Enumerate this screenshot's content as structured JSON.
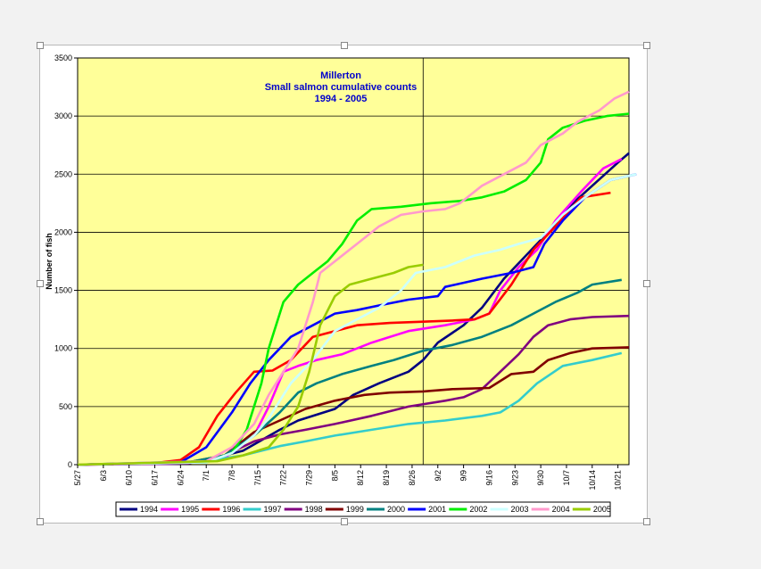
{
  "chart_data": {
    "type": "line",
    "title": [
      "Millerton",
      "Small salmon cumulative counts",
      "1994 - 2005"
    ],
    "xlabel": "",
    "ylabel": "Number of fish",
    "ylim": [
      0,
      3500
    ],
    "yticks": [
      0,
      500,
      1000,
      1500,
      2000,
      2500,
      3000,
      3500
    ],
    "xlim": [
      0,
      150
    ],
    "xtick_labels": [
      "5/27",
      "6/3",
      "6/10",
      "6/17",
      "6/24",
      "7/1",
      "7/8",
      "7/15",
      "7/22",
      "7/29",
      "8/5",
      "8/12",
      "8/19",
      "8/26",
      "9/2",
      "9/9",
      "9/16",
      "9/23",
      "9/30",
      "10/7",
      "10/14",
      "10/21"
    ],
    "xtick_values": [
      0,
      7,
      14,
      21,
      28,
      35,
      42,
      49,
      56,
      63,
      70,
      77,
      84,
      91,
      98,
      105,
      112,
      119,
      126,
      133,
      140,
      147
    ],
    "vertical_marker_x": 94,
    "grid": "horizontal",
    "legend_position": "bottom",
    "series": [
      {
        "name": "1994",
        "color": "#000080",
        "points": [
          [
            0,
            0
          ],
          [
            28,
            10
          ],
          [
            35,
            40
          ],
          [
            45,
            120
          ],
          [
            55,
            300
          ],
          [
            60,
            380
          ],
          [
            70,
            480
          ],
          [
            75,
            600
          ],
          [
            82,
            700
          ],
          [
            90,
            800
          ],
          [
            94,
            900
          ],
          [
            98,
            1050
          ],
          [
            105,
            1200
          ],
          [
            110,
            1350
          ],
          [
            116,
            1600
          ],
          [
            122,
            1800
          ],
          [
            128,
            2000
          ],
          [
            133,
            2200
          ],
          [
            140,
            2400
          ],
          [
            147,
            2600
          ],
          [
            150,
            2680
          ]
        ]
      },
      {
        "name": "1995",
        "color": "#ff00ff",
        "points": [
          [
            0,
            0
          ],
          [
            28,
            10
          ],
          [
            40,
            60
          ],
          [
            48,
            250
          ],
          [
            52,
            500
          ],
          [
            56,
            800
          ],
          [
            60,
            850
          ],
          [
            65,
            900
          ],
          [
            72,
            950
          ],
          [
            80,
            1050
          ],
          [
            90,
            1150
          ],
          [
            100,
            1200
          ],
          [
            108,
            1250
          ],
          [
            112,
            1300
          ],
          [
            115,
            1500
          ],
          [
            120,
            1700
          ],
          [
            125,
            1850
          ],
          [
            130,
            2100
          ],
          [
            137,
            2350
          ],
          [
            143,
            2550
          ],
          [
            148,
            2630
          ]
        ]
      },
      {
        "name": "1996",
        "color": "#ff0000",
        "points": [
          [
            0,
            0
          ],
          [
            20,
            10
          ],
          [
            28,
            40
          ],
          [
            33,
            150
          ],
          [
            38,
            420
          ],
          [
            43,
            620
          ],
          [
            48,
            800
          ],
          [
            53,
            810
          ],
          [
            58,
            900
          ],
          [
            64,
            1100
          ],
          [
            70,
            1150
          ],
          [
            76,
            1200
          ],
          [
            85,
            1220
          ],
          [
            94,
            1230
          ],
          [
            102,
            1240
          ],
          [
            108,
            1250
          ],
          [
            112,
            1300
          ],
          [
            118,
            1550
          ],
          [
            124,
            1850
          ],
          [
            130,
            2050
          ],
          [
            137,
            2300
          ],
          [
            145,
            2340
          ]
        ]
      },
      {
        "name": "1997",
        "color": "#33cccc",
        "points": [
          [
            0,
            0
          ],
          [
            35,
            30
          ],
          [
            45,
            80
          ],
          [
            55,
            160
          ],
          [
            62,
            200
          ],
          [
            70,
            250
          ],
          [
            80,
            300
          ],
          [
            90,
            350
          ],
          [
            100,
            380
          ],
          [
            110,
            420
          ],
          [
            115,
            450
          ],
          [
            120,
            550
          ],
          [
            125,
            700
          ],
          [
            132,
            850
          ],
          [
            140,
            900
          ],
          [
            148,
            960
          ]
        ]
      },
      {
        "name": "1998",
        "color": "#800080",
        "points": [
          [
            0,
            0
          ],
          [
            30,
            10
          ],
          [
            40,
            80
          ],
          [
            48,
            200
          ],
          [
            55,
            260
          ],
          [
            62,
            300
          ],
          [
            70,
            350
          ],
          [
            80,
            420
          ],
          [
            90,
            500
          ],
          [
            100,
            550
          ],
          [
            105,
            580
          ],
          [
            110,
            650
          ],
          [
            115,
            800
          ],
          [
            120,
            950
          ],
          [
            124,
            1100
          ],
          [
            128,
            1200
          ],
          [
            134,
            1250
          ],
          [
            140,
            1270
          ],
          [
            150,
            1280
          ]
        ]
      },
      {
        "name": "1999",
        "color": "#800000",
        "points": [
          [
            0,
            0
          ],
          [
            30,
            20
          ],
          [
            40,
            80
          ],
          [
            48,
            280
          ],
          [
            55,
            380
          ],
          [
            62,
            480
          ],
          [
            70,
            550
          ],
          [
            78,
            600
          ],
          [
            85,
            620
          ],
          [
            94,
            630
          ],
          [
            102,
            650
          ],
          [
            112,
            660
          ],
          [
            118,
            780
          ],
          [
            124,
            800
          ],
          [
            128,
            900
          ],
          [
            134,
            960
          ],
          [
            140,
            1000
          ],
          [
            150,
            1010
          ]
        ]
      },
      {
        "name": "2000",
        "color": "#008080",
        "points": [
          [
            0,
            0
          ],
          [
            30,
            20
          ],
          [
            40,
            80
          ],
          [
            48,
            250
          ],
          [
            55,
            450
          ],
          [
            60,
            620
          ],
          [
            65,
            700
          ],
          [
            72,
            780
          ],
          [
            80,
            850
          ],
          [
            86,
            900
          ],
          [
            94,
            980
          ],
          [
            102,
            1030
          ],
          [
            110,
            1100
          ],
          [
            118,
            1200
          ],
          [
            124,
            1300
          ],
          [
            130,
            1400
          ],
          [
            136,
            1480
          ],
          [
            140,
            1550
          ],
          [
            148,
            1590
          ]
        ]
      },
      {
        "name": "2001",
        "color": "#0000ff",
        "points": [
          [
            0,
            0
          ],
          [
            28,
            20
          ],
          [
            35,
            150
          ],
          [
            42,
            450
          ],
          [
            47,
            700
          ],
          [
            52,
            900
          ],
          [
            58,
            1100
          ],
          [
            64,
            1200
          ],
          [
            70,
            1300
          ],
          [
            76,
            1330
          ],
          [
            82,
            1370
          ],
          [
            90,
            1420
          ],
          [
            98,
            1450
          ],
          [
            100,
            1530
          ],
          [
            110,
            1600
          ],
          [
            118,
            1650
          ],
          [
            124,
            1700
          ],
          [
            127,
            1900
          ],
          [
            132,
            2100
          ],
          [
            138,
            2300
          ],
          [
            145,
            2450
          ],
          [
            152,
            2500
          ]
        ]
      },
      {
        "name": "2002",
        "color": "#00ee00",
        "points": [
          [
            0,
            0
          ],
          [
            35,
            20
          ],
          [
            42,
            100
          ],
          [
            46,
            300
          ],
          [
            50,
            700
          ],
          [
            52,
            1000
          ],
          [
            56,
            1400
          ],
          [
            60,
            1550
          ],
          [
            64,
            1650
          ],
          [
            68,
            1750
          ],
          [
            72,
            1900
          ],
          [
            76,
            2100
          ],
          [
            80,
            2200
          ],
          [
            88,
            2220
          ],
          [
            96,
            2250
          ],
          [
            104,
            2270
          ],
          [
            110,
            2300
          ],
          [
            116,
            2350
          ],
          [
            122,
            2450
          ],
          [
            126,
            2600
          ],
          [
            128,
            2800
          ],
          [
            132,
            2900
          ],
          [
            138,
            2960
          ],
          [
            144,
            3000
          ],
          [
            150,
            3020
          ]
        ]
      },
      {
        "name": "2003",
        "color": "#ccffff",
        "points": [
          [
            0,
            0
          ],
          [
            35,
            20
          ],
          [
            42,
            100
          ],
          [
            48,
            250
          ],
          [
            52,
            400
          ],
          [
            58,
            700
          ],
          [
            64,
            900
          ],
          [
            70,
            1150
          ],
          [
            76,
            1250
          ],
          [
            82,
            1350
          ],
          [
            88,
            1500
          ],
          [
            92,
            1650
          ],
          [
            100,
            1700
          ],
          [
            108,
            1800
          ],
          [
            115,
            1850
          ],
          [
            120,
            1900
          ],
          [
            126,
            1950
          ],
          [
            132,
            2150
          ],
          [
            138,
            2300
          ],
          [
            145,
            2450
          ],
          [
            152,
            2500
          ]
        ]
      },
      {
        "name": "2004",
        "color": "#ff99cc",
        "points": [
          [
            0,
            0
          ],
          [
            35,
            30
          ],
          [
            42,
            150
          ],
          [
            48,
            350
          ],
          [
            52,
            600
          ],
          [
            56,
            800
          ],
          [
            60,
            1000
          ],
          [
            64,
            1400
          ],
          [
            66,
            1650
          ],
          [
            70,
            1750
          ],
          [
            76,
            1900
          ],
          [
            82,
            2050
          ],
          [
            88,
            2150
          ],
          [
            94,
            2180
          ],
          [
            100,
            2200
          ],
          [
            104,
            2250
          ],
          [
            110,
            2400
          ],
          [
            116,
            2500
          ],
          [
            122,
            2600
          ],
          [
            126,
            2750
          ],
          [
            132,
            2850
          ],
          [
            136,
            2950
          ],
          [
            142,
            3050
          ],
          [
            146,
            3150
          ],
          [
            150,
            3210
          ]
        ]
      },
      {
        "name": "2005",
        "color": "#99cc00",
        "points": [
          [
            0,
            0
          ],
          [
            38,
            30
          ],
          [
            45,
            80
          ],
          [
            52,
            150
          ],
          [
            56,
            300
          ],
          [
            60,
            500
          ],
          [
            63,
            800
          ],
          [
            66,
            1200
          ],
          [
            70,
            1450
          ],
          [
            74,
            1550
          ],
          [
            80,
            1600
          ],
          [
            86,
            1650
          ],
          [
            90,
            1700
          ],
          [
            94,
            1720
          ]
        ]
      }
    ]
  }
}
